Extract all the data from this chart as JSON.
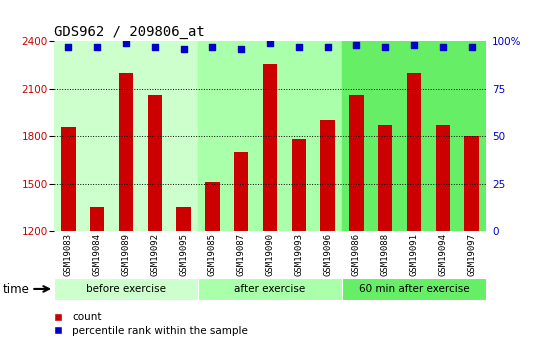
{
  "title": "GDS962 / 209806_at",
  "categories": [
    "GSM19083",
    "GSM19084",
    "GSM19089",
    "GSM19092",
    "GSM19095",
    "GSM19085",
    "GSM19087",
    "GSM19090",
    "GSM19093",
    "GSM19096",
    "GSM19086",
    "GSM19088",
    "GSM19091",
    "GSM19094",
    "GSM19097"
  ],
  "bar_values": [
    1860,
    1355,
    2200,
    2060,
    1355,
    1510,
    1700,
    2260,
    1780,
    1900,
    2060,
    1870,
    2200,
    1870,
    1800
  ],
  "percentile_values": [
    97,
    97,
    99,
    97,
    96,
    97,
    96,
    99,
    97,
    97,
    98,
    97,
    98,
    97,
    97
  ],
  "bar_color": "#CC0000",
  "percentile_color": "#0000CC",
  "ylim_left": [
    1200,
    2400
  ],
  "ylim_right": [
    0,
    100
  ],
  "yticks_left": [
    1200,
    1500,
    1800,
    2100,
    2400
  ],
  "ytick_labels_left": [
    "1200",
    "1500",
    "1800",
    "2100",
    "2400"
  ],
  "yticks_right": [
    0,
    25,
    50,
    75,
    100
  ],
  "ytick_labels_right": [
    "0",
    "25",
    "50",
    "75",
    "100%"
  ],
  "groups": [
    {
      "label": "before exercise",
      "start": 0,
      "end": 5,
      "color": "#ccffcc"
    },
    {
      "label": "after exercise",
      "start": 5,
      "end": 10,
      "color": "#aaffaa"
    },
    {
      "label": "60 min after exercise",
      "start": 10,
      "end": 15,
      "color": "#66ee66"
    }
  ],
  "xlabel": "time",
  "legend_count_label": "count",
  "legend_pct_label": "percentile rank within the sample",
  "title_fontsize": 10,
  "axis_color_left": "#CC0000",
  "axis_color_right": "#0000CC",
  "xtick_bg": "#cccccc",
  "plot_bg": "#ffffff"
}
